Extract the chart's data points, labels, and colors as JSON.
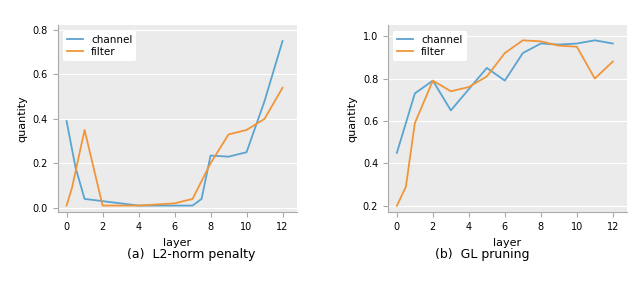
{
  "left": {
    "channel_x": [
      0,
      0.5,
      1,
      2,
      4,
      6,
      7,
      7.5,
      8,
      9,
      10,
      11,
      12
    ],
    "channel_y": [
      0.39,
      0.18,
      0.04,
      0.03,
      0.01,
      0.01,
      0.01,
      0.04,
      0.235,
      0.23,
      0.25,
      0.48,
      0.75
    ],
    "filter_x": [
      0,
      0.3,
      1,
      1.5,
      2,
      4,
      6,
      7,
      8,
      9,
      10,
      11,
      12
    ],
    "filter_y": [
      0.01,
      0.09,
      0.35,
      0.18,
      0.01,
      0.01,
      0.02,
      0.04,
      0.2,
      0.33,
      0.35,
      0.4,
      0.54
    ],
    "xlabel": "layer",
    "ylabel": "quantity",
    "ylim": [
      -0.02,
      0.82
    ],
    "xlim": [
      -0.5,
      12.8
    ],
    "yticks": [
      0.0,
      0.2,
      0.4,
      0.6,
      0.8
    ]
  },
  "right": {
    "channel_x": [
      0,
      1,
      2,
      3,
      4,
      5,
      6,
      7,
      8,
      9,
      10,
      11,
      12
    ],
    "channel_y": [
      0.45,
      0.73,
      0.79,
      0.65,
      0.75,
      0.85,
      0.79,
      0.92,
      0.965,
      0.96,
      0.965,
      0.98,
      0.965
    ],
    "filter_x": [
      0,
      0.5,
      1,
      2,
      3,
      4,
      5,
      6,
      7,
      8,
      9,
      10,
      11,
      12
    ],
    "filter_y": [
      0.2,
      0.29,
      0.59,
      0.79,
      0.74,
      0.76,
      0.81,
      0.92,
      0.98,
      0.975,
      0.955,
      0.95,
      0.8,
      0.88
    ],
    "xlabel": "layer",
    "ylabel": "quantity",
    "ylim": [
      0.17,
      1.05
    ],
    "xlim": [
      -0.5,
      12.8
    ],
    "yticks": [
      0.2,
      0.4,
      0.6,
      0.8,
      1.0
    ]
  },
  "channel_color": "#5ba3d0",
  "filter_color": "#f0963a",
  "channel_label": "channel",
  "filter_label": "filter",
  "ax_bg_color": "#ebebeb",
  "fig_bg_color": "#ffffff",
  "caption_left": "(a)  L2-norm penalty",
  "caption_right": "(b)  GL pruning",
  "caption_fontsize": 9,
  "tick_fontsize": 7,
  "label_fontsize": 8,
  "legend_fontsize": 7.5,
  "line_width": 1.3
}
